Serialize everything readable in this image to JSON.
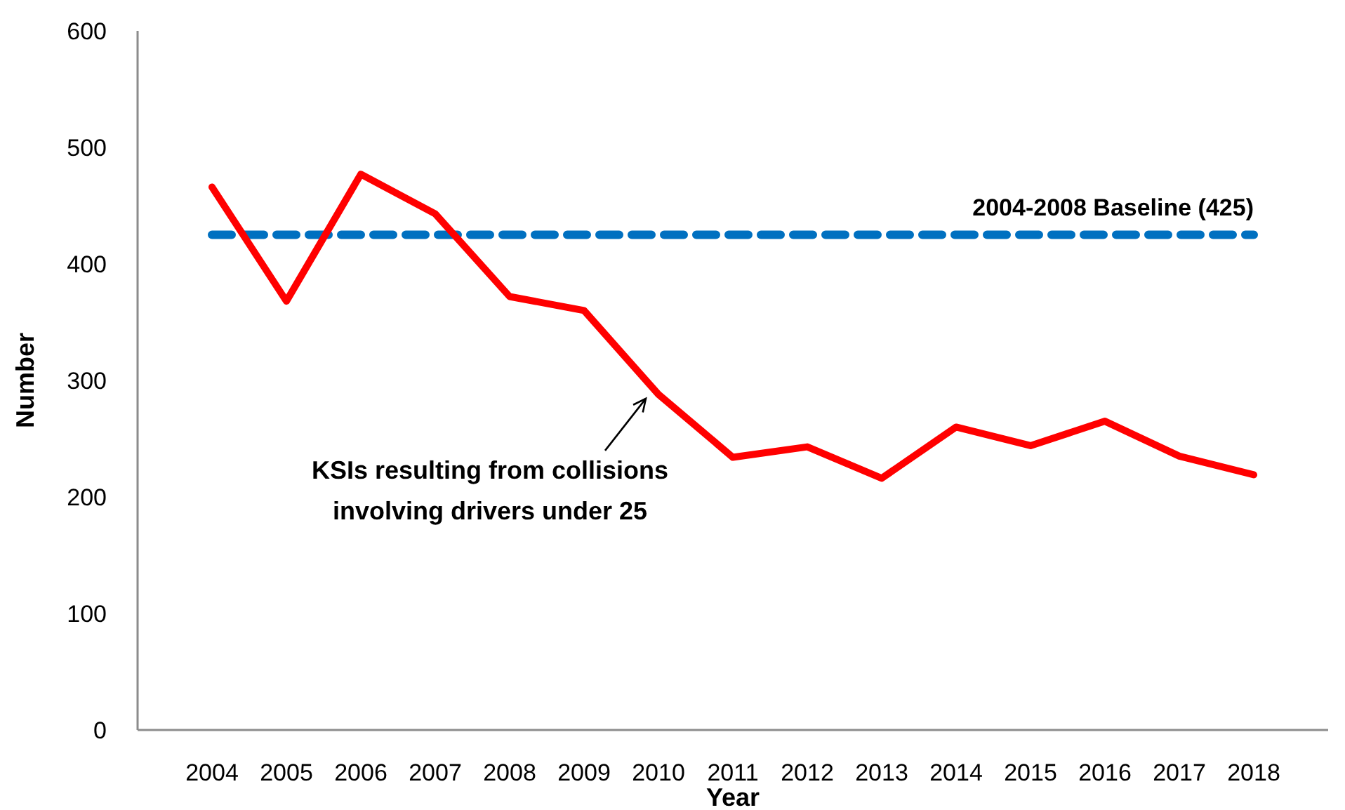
{
  "chart_data": {
    "type": "line",
    "xlabel": "Year",
    "ylabel": "Number",
    "categories": [
      "2004",
      "2005",
      "2006",
      "2007",
      "2008",
      "2009",
      "2010",
      "2011",
      "2012",
      "2013",
      "2014",
      "2015",
      "2016",
      "2017",
      "2018"
    ],
    "series": [
      {
        "color": "#ff0000",
        "values": [
          466,
          368,
          477,
          443,
          372,
          360,
          288,
          234,
          243,
          216,
          260,
          244,
          265,
          235,
          219
        ]
      }
    ],
    "ylim": [
      0,
      600
    ],
    "yticks": [
      0,
      100,
      200,
      300,
      400,
      500,
      600
    ],
    "grid": false,
    "line_style": "solid",
    "ref_lines": [
      {
        "axis": "y",
        "value": 425,
        "label": "2004-2008 Baseline (425)",
        "color": "#0070c0",
        "line_style": "dashed"
      }
    ],
    "annotations": [
      {
        "text": "KSIs resulting from collisions\ninvolving drivers under 25",
        "x": "2010",
        "y": 288
      }
    ]
  }
}
